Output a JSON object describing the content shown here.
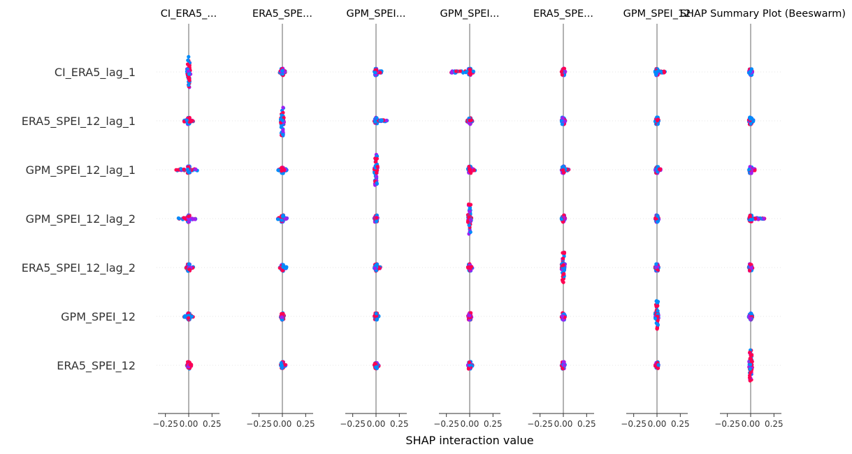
{
  "chart_data": {
    "type": "scatter",
    "subtype": "shap-interaction-beeswarm",
    "title": "SHAP Summary Plot (Beeswarm)",
    "xlabel": "SHAP interaction value",
    "features": [
      "CI_ERA5_lag_1",
      "ERA5_SPEI_12_lag_1",
      "GPM_SPEI_12_lag_1",
      "GPM_SPEI_12_lag_2",
      "ERA5_SPEI_12_lag_2",
      "GPM_SPEI_12",
      "ERA5_SPEI_12"
    ],
    "panels": [
      {
        "title": "CI_ERA5_..."
      },
      {
        "title": "ERA5_SPE..."
      },
      {
        "title": "GPM_SPEI..."
      },
      {
        "title": "GPM_SPEI..."
      },
      {
        "title": "ERA5_SPE..."
      },
      {
        "title": "GPM_SPEI_12"
      },
      {
        "title": ""
      }
    ],
    "xlim": [
      -0.33,
      0.33
    ],
    "xticks": [
      -0.25,
      0.0,
      0.25
    ],
    "xtick_labels": [
      "−0.25",
      "0.00",
      "0.25"
    ],
    "colors": {
      "low": "#008bfb",
      "mid": "#a020f0",
      "high": "#ff0052",
      "zero_line": "#999999",
      "grid": "#dddddd"
    },
    "spread": [
      [
        [
          -0.02,
          0.02,
          0.85
        ],
        [
          -0.05,
          0.05,
          0.05
        ],
        [
          -0.15,
          0.1,
          0.08
        ],
        [
          -0.12,
          0.08,
          0.06
        ],
        [
          -0.03,
          0.05,
          0.04
        ],
        [
          -0.05,
          0.05,
          0.04
        ],
        [
          -0.02,
          0.03,
          0.02
        ]
      ],
      [
        [
          -0.03,
          0.03,
          0.05
        ],
        [
          -0.02,
          0.02,
          0.85
        ],
        [
          -0.05,
          0.05,
          0.05
        ],
        [
          -0.05,
          0.05,
          0.05
        ],
        [
          -0.03,
          0.05,
          0.04
        ],
        [
          -0.02,
          0.02,
          0.03
        ],
        [
          -0.02,
          0.04,
          0.03
        ]
      ],
      [
        [
          -0.02,
          0.06,
          0.05
        ],
        [
          -0.02,
          0.12,
          0.08
        ],
        [
          -0.02,
          0.02,
          0.85
        ],
        [
          -0.02,
          0.02,
          0.05
        ],
        [
          -0.02,
          0.05,
          0.04
        ],
        [
          -0.02,
          0.03,
          0.04
        ],
        [
          -0.02,
          0.03,
          0.03
        ]
      ],
      [
        [
          -0.2,
          0.05,
          0.05
        ],
        [
          -0.03,
          0.03,
          0.04
        ],
        [
          -0.02,
          0.06,
          0.04
        ],
        [
          -0.02,
          0.02,
          0.85
        ],
        [
          -0.02,
          0.03,
          0.04
        ],
        [
          -0.02,
          0.02,
          0.03
        ],
        [
          -0.02,
          0.03,
          0.03
        ]
      ],
      [
        [
          -0.02,
          0.02,
          0.04
        ],
        [
          -0.02,
          0.02,
          0.05
        ],
        [
          -0.02,
          0.06,
          0.04
        ],
        [
          -0.02,
          0.02,
          0.04
        ],
        [
          -0.02,
          0.02,
          0.85
        ],
        [
          -0.02,
          0.02,
          0.03
        ],
        [
          -0.02,
          0.02,
          0.03
        ]
      ],
      [
        [
          -0.02,
          0.11,
          0.05
        ],
        [
          -0.02,
          0.02,
          0.03
        ],
        [
          -0.02,
          0.04,
          0.03
        ],
        [
          -0.02,
          0.02,
          0.03
        ],
        [
          -0.02,
          0.02,
          0.03
        ],
        [
          -0.02,
          0.02,
          0.85
        ],
        [
          -0.02,
          0.02,
          0.03
        ]
      ],
      [
        [
          -0.02,
          0.02,
          0.04
        ],
        [
          -0.02,
          0.03,
          0.03
        ],
        [
          -0.02,
          0.05,
          0.03
        ],
        [
          -0.02,
          0.16,
          0.04
        ],
        [
          -0.02,
          0.02,
          0.03
        ],
        [
          -0.02,
          0.02,
          0.03
        ],
        [
          -0.02,
          0.02,
          0.85
        ]
      ]
    ]
  }
}
